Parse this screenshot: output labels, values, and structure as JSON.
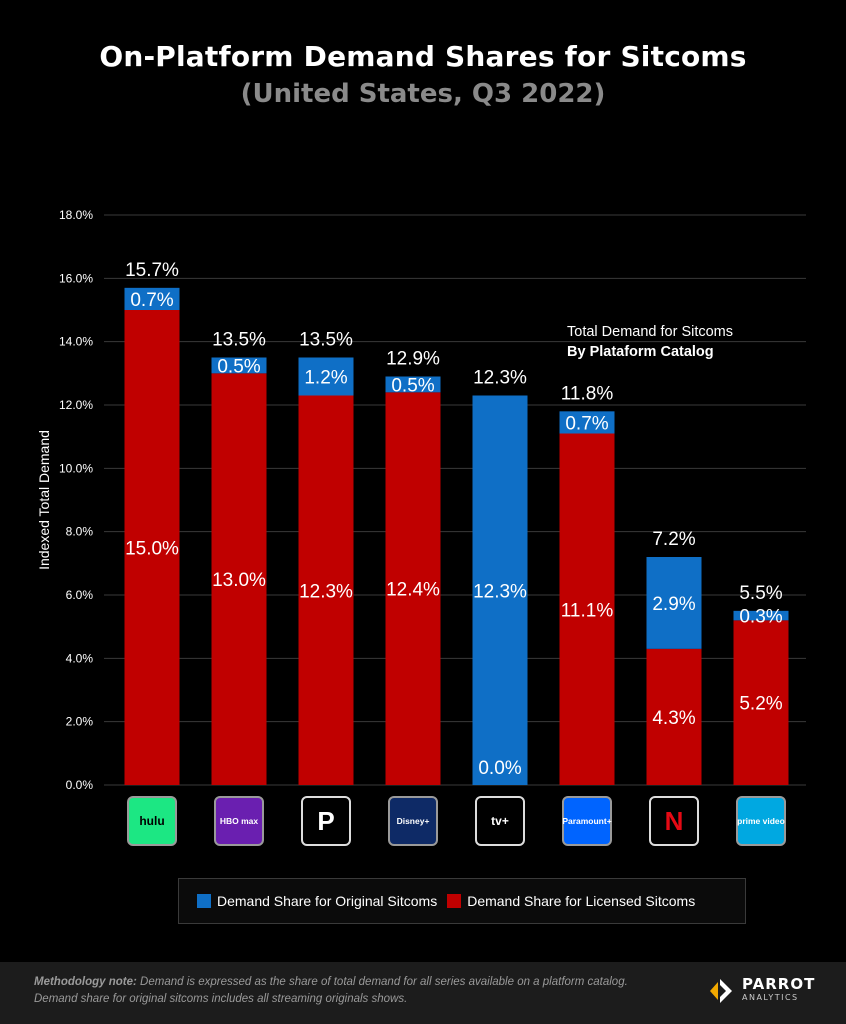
{
  "title": "On-Platform Demand Shares for Sitcoms",
  "subtitle": "(United States, Q3 2022)",
  "annotation": {
    "line1": "Total Demand for Sitcoms",
    "line2": "By Plataform Catalog"
  },
  "legend": {
    "original": "Demand Share for Original  Sitcoms",
    "licensed": "Demand Share for Licensed  Sitcoms"
  },
  "footer": {
    "note_label": "Methodology note:",
    "note_text": "Demand is expressed as the share of total demand for all series available on a platform catalog. Demand share for original sitcoms includes all streaming originals shows.",
    "brand_line1": "PARROT",
    "brand_line2": "ANALYTICS"
  },
  "colors": {
    "original": "#0f6fc6",
    "licensed": "#c00000",
    "background": "#000000"
  },
  "chart_data": {
    "type": "bar",
    "stacked": true,
    "ylabel": "Indexed Total Demand",
    "ylim": [
      0,
      18
    ],
    "yticks": [
      "0.0%",
      "2.0%",
      "4.0%",
      "6.0%",
      "8.0%",
      "10.0%",
      "12.0%",
      "14.0%",
      "16.0%",
      "18.0%"
    ],
    "categories": [
      "hulu",
      "HBO max",
      "Peacock",
      "Disney+",
      "Apple TV+",
      "Paramount+",
      "Netflix",
      "Prime Video"
    ],
    "series": [
      {
        "name": "Demand Share for Licensed  Sitcoms",
        "values": [
          15.0,
          13.0,
          12.3,
          12.4,
          0.0,
          11.1,
          4.3,
          5.2
        ],
        "labels": [
          "15.0%",
          "13.0%",
          "12.3%",
          "12.4%",
          "0.0%",
          "11.1%",
          "4.3%",
          "5.2%"
        ]
      },
      {
        "name": "Demand Share for Original  Sitcoms",
        "values": [
          0.7,
          0.5,
          1.2,
          0.5,
          12.3,
          0.7,
          2.9,
          0.3
        ],
        "labels": [
          "0.7%",
          "0.5%",
          "1.2%",
          "0.5%",
          "12.3%",
          "0.7%",
          "2.9%",
          "0.3%"
        ]
      }
    ],
    "totals": [
      15.7,
      13.5,
      13.5,
      12.9,
      12.3,
      11.8,
      7.2,
      5.5
    ],
    "total_labels": [
      "15.7%",
      "13.5%",
      "13.5%",
      "12.9%",
      "12.3%",
      "11.8%",
      "7.2%",
      "5.5%"
    ],
    "logos": [
      {
        "icon": "hulu-logo-icon",
        "text": "hulu",
        "bg": "#1ce783",
        "fg": "#000000"
      },
      {
        "icon": "hbo-max-logo-icon",
        "text": "HBO max",
        "bg": "#6a1fb0",
        "fg": "#ffffff"
      },
      {
        "icon": "peacock-logo-icon",
        "text": "P",
        "bg": "#000000",
        "fg": "#ffffff"
      },
      {
        "icon": "disney-plus-logo-icon",
        "text": "Disney+",
        "bg": "#0e2a66",
        "fg": "#ffffff"
      },
      {
        "icon": "apple-tv-logo-icon",
        "text": "tv+",
        "bg": "#000000",
        "fg": "#ffffff"
      },
      {
        "icon": "paramount-plus-logo-icon",
        "text": "Paramount+",
        "bg": "#0064ff",
        "fg": "#ffffff"
      },
      {
        "icon": "netflix-logo-icon",
        "text": "N",
        "bg": "#000000",
        "fg": "#e50914"
      },
      {
        "icon": "prime-video-logo-icon",
        "text": "prime video",
        "bg": "#00a8e1",
        "fg": "#ffffff"
      }
    ],
    "grid": true,
    "legend_position": "bottom"
  }
}
